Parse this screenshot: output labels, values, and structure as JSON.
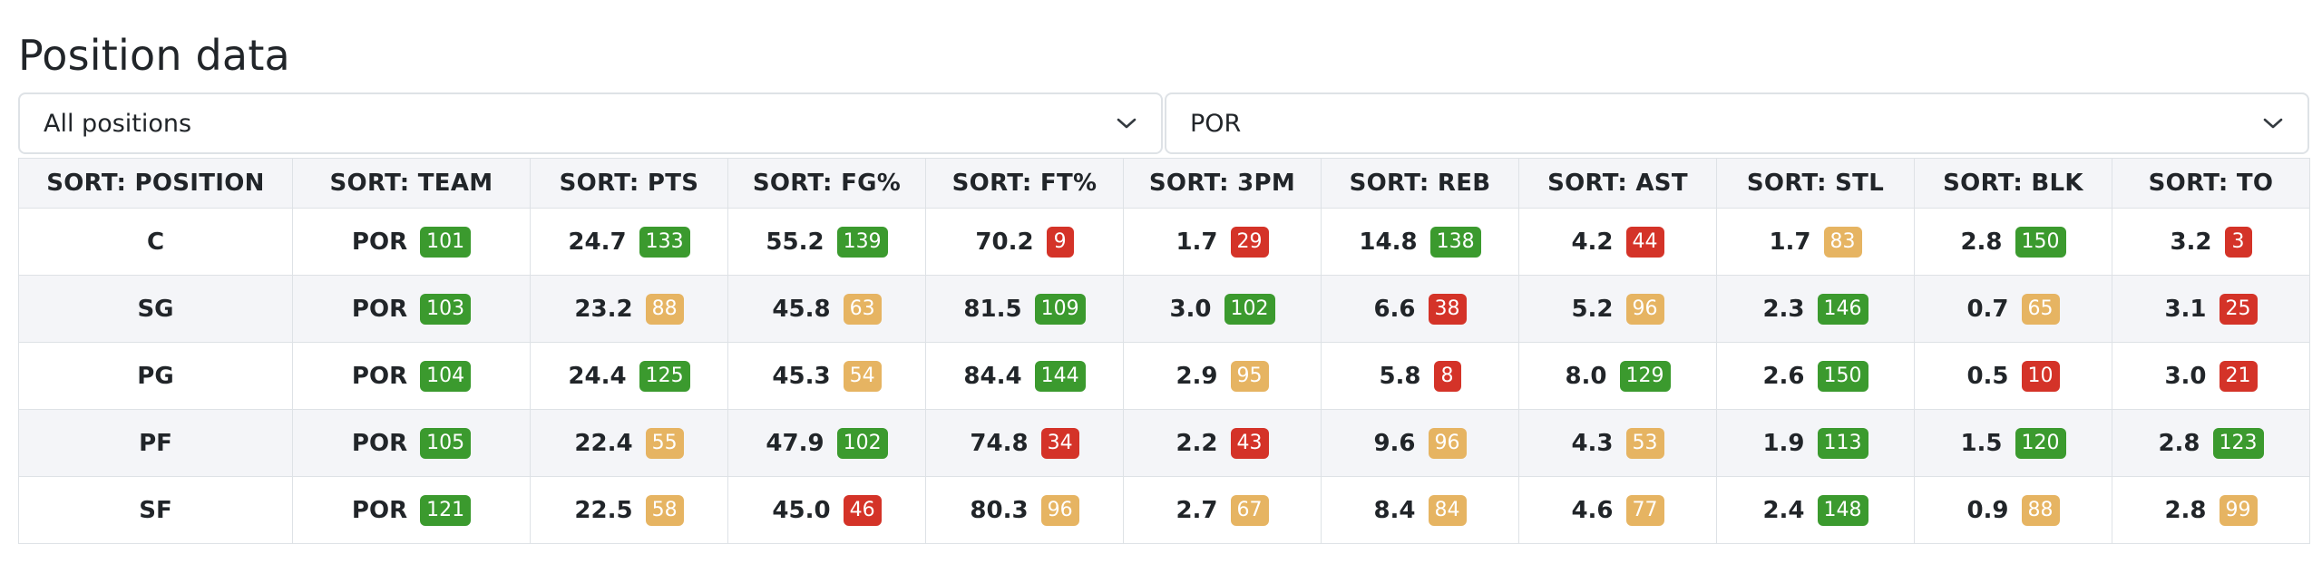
{
  "page": {
    "title": "Position data"
  },
  "filters": {
    "position_select": {
      "value": "All positions"
    },
    "team_select": {
      "value": "POR"
    }
  },
  "icons": {
    "dropdown": "chevron-down-icon"
  },
  "colors": {
    "good": "#3b9a2e",
    "mid": "#e6b462",
    "bad": "#d43328"
  },
  "table": {
    "columns": [
      "SORT: POSITION",
      "SORT: TEAM",
      "SORT: PTS",
      "SORT: FG%",
      "SORT: FT%",
      "SORT: 3PM",
      "SORT: REB",
      "SORT: AST",
      "SORT: STL",
      "SORT: BLK",
      "SORT: TO"
    ],
    "rows": [
      {
        "position": "C",
        "team": "POR",
        "team_rank": "101",
        "team_level": "good",
        "stats": [
          {
            "value": "24.7",
            "rank": "133",
            "level": "good"
          },
          {
            "value": "55.2",
            "rank": "139",
            "level": "good"
          },
          {
            "value": "70.2",
            "rank": "9",
            "level": "bad"
          },
          {
            "value": "1.7",
            "rank": "29",
            "level": "bad"
          },
          {
            "value": "14.8",
            "rank": "138",
            "level": "good"
          },
          {
            "value": "4.2",
            "rank": "44",
            "level": "bad"
          },
          {
            "value": "1.7",
            "rank": "83",
            "level": "mid"
          },
          {
            "value": "2.8",
            "rank": "150",
            "level": "good"
          },
          {
            "value": "3.2",
            "rank": "3",
            "level": "bad"
          }
        ]
      },
      {
        "position": "SG",
        "team": "POR",
        "team_rank": "103",
        "team_level": "good",
        "stats": [
          {
            "value": "23.2",
            "rank": "88",
            "level": "mid"
          },
          {
            "value": "45.8",
            "rank": "63",
            "level": "mid"
          },
          {
            "value": "81.5",
            "rank": "109",
            "level": "good"
          },
          {
            "value": "3.0",
            "rank": "102",
            "level": "good"
          },
          {
            "value": "6.6",
            "rank": "38",
            "level": "bad"
          },
          {
            "value": "5.2",
            "rank": "96",
            "level": "mid"
          },
          {
            "value": "2.3",
            "rank": "146",
            "level": "good"
          },
          {
            "value": "0.7",
            "rank": "65",
            "level": "mid"
          },
          {
            "value": "3.1",
            "rank": "25",
            "level": "bad"
          }
        ]
      },
      {
        "position": "PG",
        "team": "POR",
        "team_rank": "104",
        "team_level": "good",
        "stats": [
          {
            "value": "24.4",
            "rank": "125",
            "level": "good"
          },
          {
            "value": "45.3",
            "rank": "54",
            "level": "mid"
          },
          {
            "value": "84.4",
            "rank": "144",
            "level": "good"
          },
          {
            "value": "2.9",
            "rank": "95",
            "level": "mid"
          },
          {
            "value": "5.8",
            "rank": "8",
            "level": "bad"
          },
          {
            "value": "8.0",
            "rank": "129",
            "level": "good"
          },
          {
            "value": "2.6",
            "rank": "150",
            "level": "good"
          },
          {
            "value": "0.5",
            "rank": "10",
            "level": "bad"
          },
          {
            "value": "3.0",
            "rank": "21",
            "level": "bad"
          }
        ]
      },
      {
        "position": "PF",
        "team": "POR",
        "team_rank": "105",
        "team_level": "good",
        "stats": [
          {
            "value": "22.4",
            "rank": "55",
            "level": "mid"
          },
          {
            "value": "47.9",
            "rank": "102",
            "level": "good"
          },
          {
            "value": "74.8",
            "rank": "34",
            "level": "bad"
          },
          {
            "value": "2.2",
            "rank": "43",
            "level": "bad"
          },
          {
            "value": "9.6",
            "rank": "96",
            "level": "mid"
          },
          {
            "value": "4.3",
            "rank": "53",
            "level": "mid"
          },
          {
            "value": "1.9",
            "rank": "113",
            "level": "good"
          },
          {
            "value": "1.5",
            "rank": "120",
            "level": "good"
          },
          {
            "value": "2.8",
            "rank": "123",
            "level": "good"
          }
        ]
      },
      {
        "position": "SF",
        "team": "POR",
        "team_rank": "121",
        "team_level": "good",
        "stats": [
          {
            "value": "22.5",
            "rank": "58",
            "level": "mid"
          },
          {
            "value": "45.0",
            "rank": "46",
            "level": "bad"
          },
          {
            "value": "80.3",
            "rank": "96",
            "level": "mid"
          },
          {
            "value": "2.7",
            "rank": "67",
            "level": "mid"
          },
          {
            "value": "8.4",
            "rank": "84",
            "level": "mid"
          },
          {
            "value": "4.6",
            "rank": "77",
            "level": "mid"
          },
          {
            "value": "2.4",
            "rank": "148",
            "level": "good"
          },
          {
            "value": "0.9",
            "rank": "88",
            "level": "mid"
          },
          {
            "value": "2.8",
            "rank": "99",
            "level": "mid"
          }
        ]
      }
    ]
  }
}
